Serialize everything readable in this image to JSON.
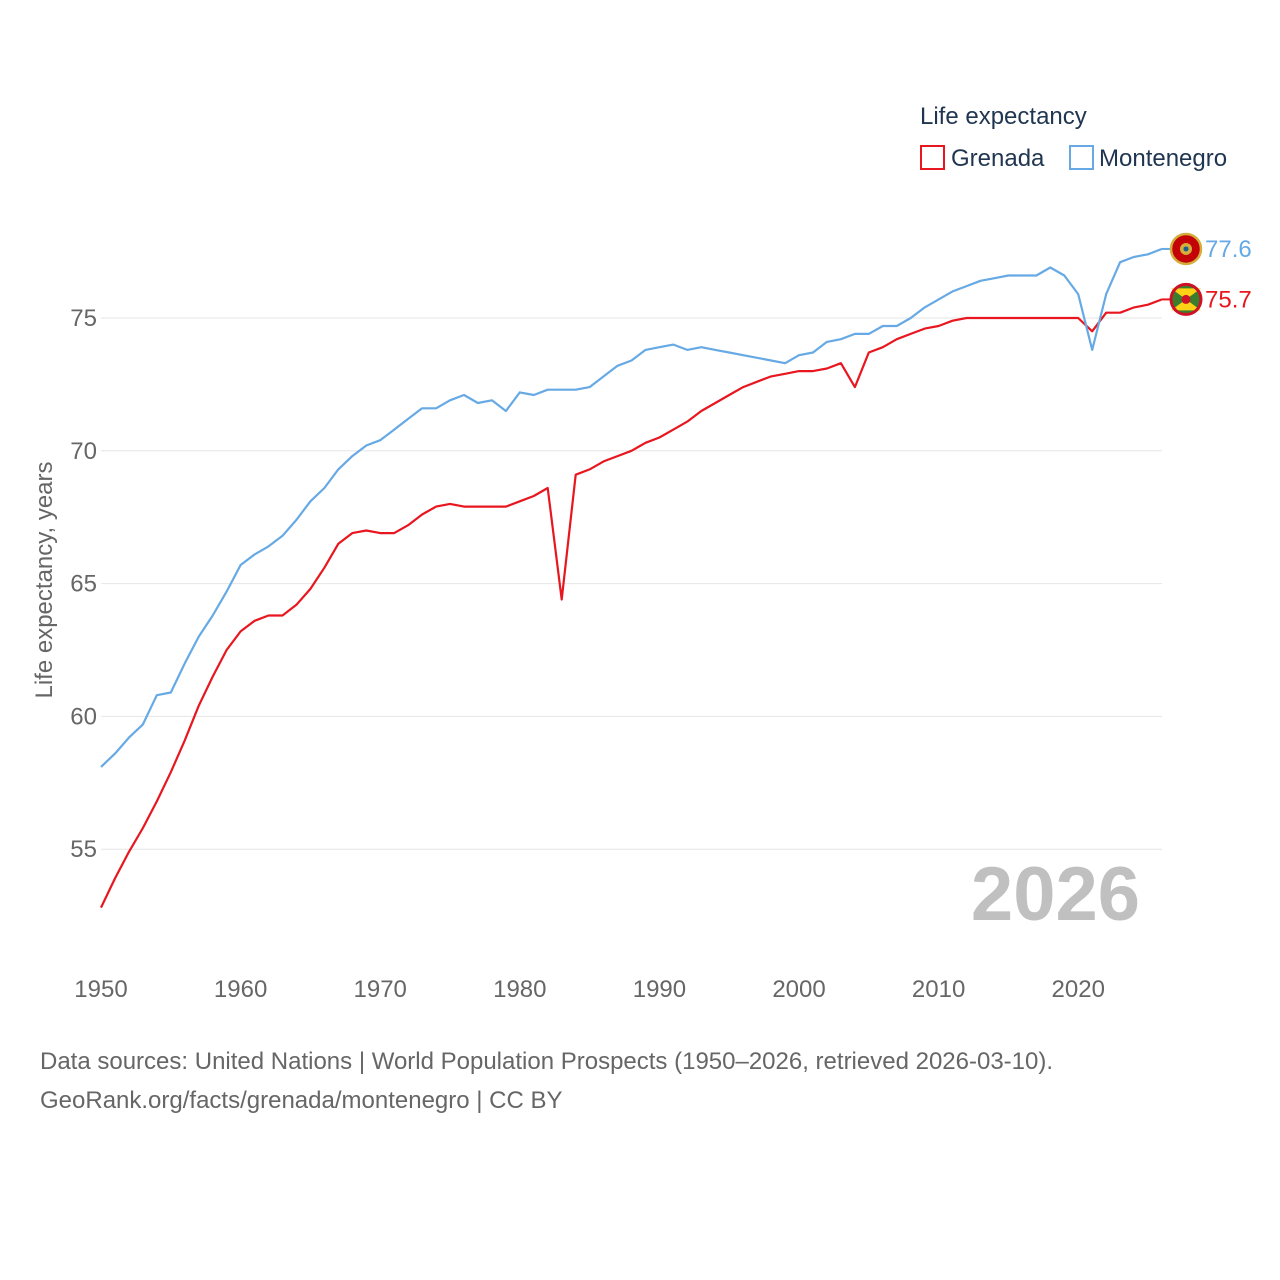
{
  "chart_data": {
    "type": "line",
    "title": "",
    "xlabel": "",
    "ylabel": "Life expectancy, years",
    "xlim": [
      1950,
      2026
    ],
    "ylim": [
      51.5,
      80
    ],
    "yticks": [
      55,
      60,
      65,
      70,
      75
    ],
    "xticks": [
      1950,
      1960,
      1970,
      1980,
      1990,
      2000,
      2010,
      2020
    ],
    "year_label": "2026",
    "legend": {
      "title": "Life expectancy",
      "position": "top-right",
      "items": [
        "Grenada",
        "Montenegro"
      ]
    },
    "x": [
      1950,
      1951,
      1952,
      1953,
      1954,
      1955,
      1956,
      1957,
      1958,
      1959,
      1960,
      1961,
      1962,
      1963,
      1964,
      1965,
      1966,
      1967,
      1968,
      1969,
      1970,
      1971,
      1972,
      1973,
      1974,
      1975,
      1976,
      1977,
      1978,
      1979,
      1980,
      1981,
      1982,
      1983,
      1984,
      1985,
      1986,
      1987,
      1988,
      1989,
      1990,
      1991,
      1992,
      1993,
      1994,
      1995,
      1996,
      1997,
      1998,
      1999,
      2000,
      2001,
      2002,
      2003,
      2004,
      2005,
      2006,
      2007,
      2008,
      2009,
      2010,
      2011,
      2012,
      2013,
      2014,
      2015,
      2016,
      2017,
      2018,
      2019,
      2020,
      2021,
      2022,
      2023,
      2024,
      2025,
      2026
    ],
    "series": [
      {
        "name": "Grenada",
        "color": "#e8161f",
        "end_label": "75.7",
        "values": [
          52.8,
          53.9,
          54.9,
          55.8,
          56.8,
          57.9,
          59.1,
          60.4,
          61.5,
          62.5,
          63.2,
          63.6,
          63.8,
          63.8,
          64.2,
          64.8,
          65.6,
          66.5,
          66.9,
          67.0,
          66.9,
          66.9,
          67.2,
          67.6,
          67.9,
          68.0,
          67.9,
          67.9,
          67.9,
          67.9,
          68.1,
          68.3,
          68.6,
          64.4,
          69.1,
          69.3,
          69.6,
          69.8,
          70.0,
          70.3,
          70.5,
          70.8,
          71.1,
          71.5,
          71.8,
          72.1,
          72.4,
          72.6,
          72.8,
          72.9,
          73.0,
          73.0,
          73.1,
          73.3,
          72.4,
          73.7,
          73.9,
          74.2,
          74.4,
          74.6,
          74.7,
          74.9,
          75.0,
          75.0,
          75.0,
          75.0,
          75.0,
          75.0,
          75.0,
          75.0,
          75.0,
          74.5,
          75.2,
          75.2,
          75.4,
          75.5,
          75.7
        ]
      },
      {
        "name": "Montenegro",
        "color": "#66a9e4",
        "end_label": "77.6",
        "values": [
          58.1,
          58.6,
          59.2,
          59.7,
          60.8,
          60.9,
          62.0,
          63.0,
          63.8,
          64.7,
          65.7,
          66.1,
          66.4,
          66.8,
          67.4,
          68.1,
          68.6,
          69.3,
          69.8,
          70.2,
          70.4,
          70.8,
          71.2,
          71.6,
          71.6,
          71.9,
          72.1,
          71.8,
          71.9,
          71.5,
          72.2,
          72.1,
          72.3,
          72.3,
          72.3,
          72.4,
          72.8,
          73.2,
          73.4,
          73.8,
          73.9,
          74.0,
          73.8,
          73.9,
          73.8,
          73.7,
          73.6,
          73.5,
          73.4,
          73.3,
          73.6,
          73.7,
          74.1,
          74.2,
          74.4,
          74.4,
          74.7,
          74.7,
          75.0,
          75.4,
          75.7,
          76.0,
          76.2,
          76.4,
          76.5,
          76.6,
          76.6,
          76.6,
          76.9,
          76.6,
          75.9,
          73.8,
          75.9,
          77.1,
          77.3,
          77.4,
          77.6
        ]
      }
    ],
    "source_lines": [
      "Data sources: United Nations | World Population Prospects (1950–2026, retrieved 2026-03-10).",
      "GeoRank.org/facts/grenada/montenegro | CC BY"
    ]
  }
}
